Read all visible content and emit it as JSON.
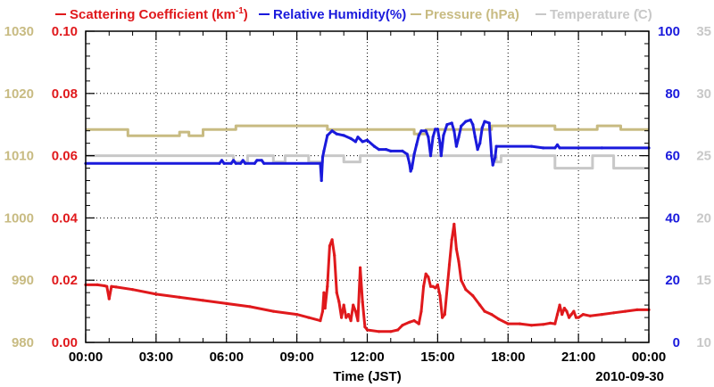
{
  "chart_data": {
    "type": "line",
    "legend": [
      {
        "label": "Scattering Coefficient (km",
        "sup": "-1",
        "suffix": ")",
        "color": "#e0191c"
      },
      {
        "label": "Relative Humidity(%)",
        "color": "#1a1adc"
      },
      {
        "label": "Pressure (hPa)",
        "color": "#c8bb82"
      },
      {
        "label": "Temperature (̊C)",
        "color": "#c8c8c8"
      }
    ],
    "xlabel": "Time (JST)",
    "date_label": "2010-09-30",
    "x_ticks": [
      "00:00",
      "03:00",
      "06:00",
      "09:00",
      "12:00",
      "15:00",
      "18:00",
      "21:00",
      "00:00"
    ],
    "xlim": [
      0,
      24
    ],
    "axes": {
      "pressure": {
        "range": [
          980,
          1030
        ],
        "ticks": [
          "980",
          "990",
          "1000",
          "1010",
          "1020",
          "1030"
        ],
        "color": "#c8bb82"
      },
      "scattering": {
        "range": [
          0,
          0.1
        ],
        "ticks": [
          "0.00",
          "0.02",
          "0.04",
          "0.06",
          "0.08",
          "0.10"
        ],
        "color": "#e0191c"
      },
      "humidity": {
        "range": [
          0,
          100
        ],
        "ticks": [
          "0",
          "20",
          "40",
          "60",
          "80",
          "100"
        ],
        "color": "#1a1adc"
      },
      "temperature": {
        "range": [
          10,
          35
        ],
        "ticks": [
          "10",
          "15",
          "20",
          "25",
          "30",
          "35"
        ],
        "color": "#c8c8c8"
      }
    },
    "series": [
      {
        "name": "Pressure (hPa)",
        "axis": "pressure",
        "color": "#c8bb82",
        "step": true,
        "points": [
          [
            0,
            1014.2
          ],
          [
            1.8,
            1014.2
          ],
          [
            1.8,
            1013.2
          ],
          [
            4.0,
            1013.2
          ],
          [
            4.0,
            1013.8
          ],
          [
            4.4,
            1013.8
          ],
          [
            4.4,
            1013.2
          ],
          [
            5.0,
            1013.2
          ],
          [
            5.0,
            1014.2
          ],
          [
            6.4,
            1014.2
          ],
          [
            6.4,
            1014.8
          ],
          [
            10.3,
            1014.8
          ],
          [
            10.3,
            1014.2
          ],
          [
            14.0,
            1014.2
          ],
          [
            14.0,
            1013.5
          ],
          [
            14.5,
            1013.5
          ],
          [
            14.5,
            1014.2
          ],
          [
            17.3,
            1014.2
          ],
          [
            17.3,
            1014.8
          ],
          [
            20.0,
            1014.8
          ],
          [
            20.0,
            1014.2
          ],
          [
            21.8,
            1014.2
          ],
          [
            21.8,
            1014.8
          ],
          [
            22.8,
            1014.8
          ],
          [
            22.8,
            1014.2
          ],
          [
            24,
            1014.2
          ]
        ]
      },
      {
        "name": "Temperature (C)",
        "axis": "temperature",
        "color": "#c8c8c8",
        "step": true,
        "points": [
          [
            0,
            25.0
          ],
          [
            6.3,
            25.0
          ],
          [
            6.3,
            24.5
          ],
          [
            6.9,
            24.5
          ],
          [
            6.9,
            25.0
          ],
          [
            8.0,
            25.0
          ],
          [
            8.0,
            24.5
          ],
          [
            8.5,
            24.5
          ],
          [
            8.5,
            25.0
          ],
          [
            9.5,
            25.0
          ],
          [
            9.5,
            24.5
          ],
          [
            10.1,
            24.5
          ],
          [
            10.1,
            25.0
          ],
          [
            11.0,
            25.0
          ],
          [
            11.0,
            24.5
          ],
          [
            11.7,
            24.5
          ],
          [
            11.7,
            25.0
          ],
          [
            17.5,
            25.0
          ],
          [
            17.5,
            24.5
          ],
          [
            17.7,
            24.5
          ],
          [
            17.7,
            25.0
          ],
          [
            20.0,
            25.0
          ],
          [
            20.0,
            24.0
          ],
          [
            21.6,
            24.0
          ],
          [
            21.6,
            25.0
          ],
          [
            22.5,
            25.0
          ],
          [
            22.5,
            24.0
          ],
          [
            24,
            24.0
          ]
        ]
      },
      {
        "name": "Relative Humidity(%)",
        "axis": "humidity",
        "color": "#1a1adc",
        "points": [
          [
            0,
            57.5
          ],
          [
            5.7,
            57.5
          ],
          [
            5.8,
            58.5
          ],
          [
            5.9,
            57.5
          ],
          [
            6.2,
            57.5
          ],
          [
            6.3,
            58.5
          ],
          [
            6.4,
            57.5
          ],
          [
            6.6,
            57.5
          ],
          [
            6.7,
            58.5
          ],
          [
            6.8,
            57.5
          ],
          [
            7.2,
            57.5
          ],
          [
            7.3,
            58.5
          ],
          [
            7.5,
            58.5
          ],
          [
            7.6,
            57.5
          ],
          [
            10.0,
            57.5
          ],
          [
            10.05,
            52.0
          ],
          [
            10.1,
            59.5
          ],
          [
            10.15,
            61.5
          ],
          [
            10.3,
            66.5
          ],
          [
            10.5,
            68.0
          ],
          [
            10.7,
            67.0
          ],
          [
            11.0,
            66.5
          ],
          [
            11.3,
            65.5
          ],
          [
            11.5,
            64.5
          ],
          [
            11.6,
            66.0
          ],
          [
            11.8,
            64.5
          ],
          [
            12.0,
            65.0
          ],
          [
            12.3,
            63.0
          ],
          [
            12.5,
            62.0
          ],
          [
            12.8,
            62.0
          ],
          [
            13.0,
            61.5
          ],
          [
            13.5,
            61.5
          ],
          [
            13.7,
            60.5
          ],
          [
            13.8,
            57.5
          ],
          [
            13.85,
            55.0
          ],
          [
            13.9,
            56.0
          ],
          [
            14.0,
            60.5
          ],
          [
            14.1,
            63.5
          ],
          [
            14.2,
            66.5
          ],
          [
            14.3,
            68.0
          ],
          [
            14.5,
            68.0
          ],
          [
            14.6,
            66.0
          ],
          [
            14.7,
            60.0
          ],
          [
            14.8,
            66.0
          ],
          [
            14.9,
            68.5
          ],
          [
            15.0,
            68.5
          ],
          [
            15.1,
            64.0
          ],
          [
            15.15,
            60.0
          ],
          [
            15.25,
            66.5
          ],
          [
            15.4,
            70.0
          ],
          [
            15.6,
            70.5
          ],
          [
            15.7,
            68.0
          ],
          [
            15.8,
            63.0
          ],
          [
            15.9,
            66.0
          ],
          [
            16.0,
            69.5
          ],
          [
            16.2,
            71.0
          ],
          [
            16.4,
            71.5
          ],
          [
            16.5,
            70.0
          ],
          [
            16.6,
            66.0
          ],
          [
            16.7,
            62.0
          ],
          [
            16.8,
            64.0
          ],
          [
            16.9,
            69.0
          ],
          [
            17.0,
            71.0
          ],
          [
            17.2,
            70.5
          ],
          [
            17.3,
            60.0
          ],
          [
            17.35,
            57.0
          ],
          [
            17.45,
            59.5
          ],
          [
            17.5,
            63.0
          ],
          [
            19.0,
            63.0
          ],
          [
            19.5,
            62.5
          ],
          [
            20.0,
            62.5
          ],
          [
            20.1,
            63.5
          ],
          [
            20.2,
            62.5
          ],
          [
            22.0,
            62.5
          ],
          [
            24,
            62.5
          ]
        ]
      },
      {
        "name": "Scattering Coefficient (km-1)",
        "axis": "scattering",
        "color": "#e0191c",
        "points": [
          [
            0,
            0.0185
          ],
          [
            0.5,
            0.0185
          ],
          [
            0.8,
            0.0182
          ],
          [
            0.9,
            0.018
          ],
          [
            1.0,
            0.014
          ],
          [
            1.1,
            0.018
          ],
          [
            1.3,
            0.0178
          ],
          [
            2.0,
            0.017
          ],
          [
            3.0,
            0.0155
          ],
          [
            4.0,
            0.0145
          ],
          [
            5.0,
            0.0135
          ],
          [
            6.0,
            0.0125
          ],
          [
            7.0,
            0.0115
          ],
          [
            8.0,
            0.01
          ],
          [
            9.0,
            0.009
          ],
          [
            9.5,
            0.008
          ],
          [
            10.0,
            0.007
          ],
          [
            10.1,
            0.01
          ],
          [
            10.15,
            0.016
          ],
          [
            10.2,
            0.011
          ],
          [
            10.3,
            0.018
          ],
          [
            10.4,
            0.031
          ],
          [
            10.5,
            0.033
          ],
          [
            10.6,
            0.028
          ],
          [
            10.7,
            0.016
          ],
          [
            10.8,
            0.013
          ],
          [
            10.9,
            0.008
          ],
          [
            11.0,
            0.012
          ],
          [
            11.1,
            0.008
          ],
          [
            11.2,
            0.009
          ],
          [
            11.3,
            0.007
          ],
          [
            11.4,
            0.012
          ],
          [
            11.5,
            0.01
          ],
          [
            11.6,
            0.007
          ],
          [
            11.7,
            0.024
          ],
          [
            11.8,
            0.013
          ],
          [
            11.9,
            0.005
          ],
          [
            12.0,
            0.004
          ],
          [
            12.5,
            0.0035
          ],
          [
            13.0,
            0.0035
          ],
          [
            13.3,
            0.004
          ],
          [
            13.5,
            0.0055
          ],
          [
            13.8,
            0.0065
          ],
          [
            14.0,
            0.007
          ],
          [
            14.2,
            0.006
          ],
          [
            14.3,
            0.01
          ],
          [
            14.4,
            0.018
          ],
          [
            14.5,
            0.022
          ],
          [
            14.6,
            0.021
          ],
          [
            14.7,
            0.018
          ],
          [
            14.8,
            0.018
          ],
          [
            14.9,
            0.0175
          ],
          [
            15.0,
            0.0185
          ],
          [
            15.1,
            0.015
          ],
          [
            15.2,
            0.008
          ],
          [
            15.3,
            0.009
          ],
          [
            15.5,
            0.025
          ],
          [
            15.6,
            0.033
          ],
          [
            15.7,
            0.038
          ],
          [
            15.8,
            0.03
          ],
          [
            15.9,
            0.026
          ],
          [
            16.0,
            0.02
          ],
          [
            16.2,
            0.017
          ],
          [
            16.5,
            0.015
          ],
          [
            16.8,
            0.012
          ],
          [
            17.0,
            0.01
          ],
          [
            17.3,
            0.009
          ],
          [
            17.6,
            0.0075
          ],
          [
            18.0,
            0.006
          ],
          [
            18.5,
            0.006
          ],
          [
            19.0,
            0.0055
          ],
          [
            19.5,
            0.0058
          ],
          [
            19.8,
            0.0062
          ],
          [
            20.0,
            0.006
          ],
          [
            20.1,
            0.009
          ],
          [
            20.2,
            0.012
          ],
          [
            20.3,
            0.009
          ],
          [
            20.4,
            0.011
          ],
          [
            20.5,
            0.01
          ],
          [
            20.6,
            0.008
          ],
          [
            20.7,
            0.009
          ],
          [
            20.8,
            0.01
          ],
          [
            20.9,
            0.008
          ],
          [
            21.0,
            0.008
          ],
          [
            21.2,
            0.009
          ],
          [
            21.5,
            0.0085
          ],
          [
            22.0,
            0.009
          ],
          [
            22.5,
            0.0095
          ],
          [
            23.0,
            0.01
          ],
          [
            23.5,
            0.0105
          ],
          [
            24,
            0.0105
          ]
        ]
      }
    ]
  }
}
